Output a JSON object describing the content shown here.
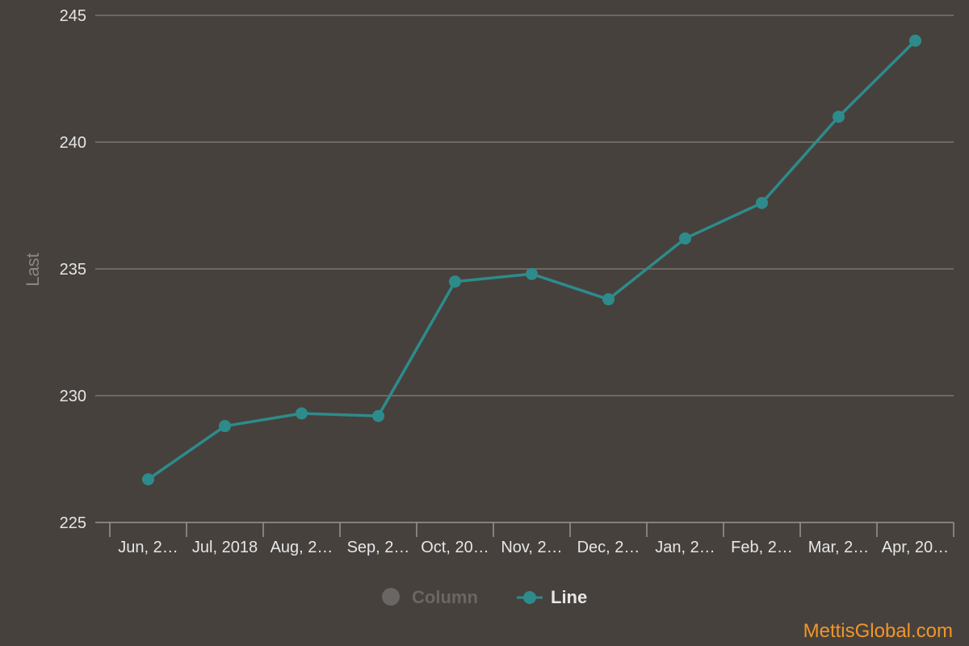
{
  "chart_data": {
    "type": "line",
    "categories": [
      "Jun, 2…",
      "Jul, 2018",
      "Aug, 2…",
      "Sep, 2…",
      "Oct, 20…",
      "Nov, 2…",
      "Dec, 2…",
      "Jan, 2…",
      "Feb, 2…",
      "Mar, 2…",
      "Apr, 20…"
    ],
    "series": [
      {
        "name": "Line",
        "color": "#2e8b8b",
        "values": [
          226.7,
          228.8,
          229.3,
          229.2,
          234.5,
          234.8,
          233.8,
          236.2,
          237.6,
          241.0,
          244.0
        ]
      }
    ],
    "title": "",
    "xlabel": "",
    "ylabel": "Last",
    "ylim": [
      225,
      245
    ],
    "yticks": [
      "225",
      "230",
      "235",
      "240",
      "245"
    ],
    "grid": true,
    "legend": {
      "placement": "bottom-center",
      "items": [
        {
          "label": "Column",
          "active": false,
          "color": "#6a6664"
        },
        {
          "label": "Line",
          "active": true,
          "color": "#2e8b8b"
        }
      ]
    },
    "credit": "MettisGlobal.com"
  }
}
